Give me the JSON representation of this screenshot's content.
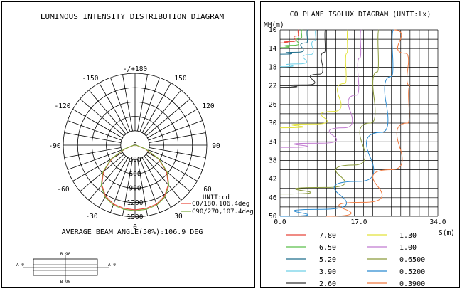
{
  "polar": {
    "title": "LUMINOUS INTENSITY DISTRIBUTION DIAGRAM",
    "angle_labels": [
      "-/+180",
      "-150",
      "150",
      "-120",
      "120",
      "-90",
      "90",
      "-60",
      "60",
      "-30",
      "30",
      "0"
    ],
    "radial_labels": [
      "0",
      "300",
      "600",
      "900",
      "1200",
      "1500"
    ],
    "unit": "UNIT:cd",
    "beam_angle": "AVERAGE BEAM ANGLE(50%):106.9 DEG",
    "legend": [
      {
        "label": "C0/180,106.4deg",
        "color": "#e8463a"
      },
      {
        "label": "C90/270,107.4deg",
        "color": "#7aa83c"
      }
    ]
  },
  "fixture": {
    "labels": {
      "top": "B 90",
      "bottom": "B 90",
      "left": "A 0",
      "right": "A 0"
    }
  },
  "isolux": {
    "title": "C0 PLANE ISOLUX DIAGRAM (UNIT:lx)",
    "ylabel": "MH(m)",
    "xlabel": "S(m)",
    "y_ticks": [
      "10",
      "14",
      "18",
      "22",
      "26",
      "30",
      "34",
      "38",
      "42",
      "46",
      "50"
    ],
    "x_ticks": [
      "0.0",
      "17.0",
      "34.0"
    ],
    "legend": [
      {
        "label": "7.80",
        "color": "#e8463a"
      },
      {
        "label": "1.30",
        "color": "#e2e23a"
      },
      {
        "label": "6.50",
        "color": "#5bbf4a"
      },
      {
        "label": "1.00",
        "color": "#c07ad0"
      },
      {
        "label": "5.20",
        "color": "#1f6e8c"
      },
      {
        "label": "0.6500",
        "color": "#8a9a3a"
      },
      {
        "label": "3.90",
        "color": "#6fd0e8"
      },
      {
        "label": "0.5200",
        "color": "#2a8ad0"
      },
      {
        "label": "2.60",
        "color": "#333333"
      },
      {
        "label": "0.3900",
        "color": "#f07a40"
      }
    ]
  },
  "chart_data": [
    {
      "type": "polar",
      "title": "LUMINOUS INTENSITY DISTRIBUTION DIAGRAM",
      "unit": "cd",
      "rlim": [
        0,
        1500
      ],
      "radial_ticks": [
        0,
        300,
        600,
        900,
        1200,
        1500
      ],
      "series": [
        {
          "name": "C0/180,106.4deg",
          "angles": [
            -90,
            -80,
            -70,
            -60,
            -50,
            -40,
            -30,
            -20,
            -10,
            0,
            10,
            20,
            30,
            40,
            50,
            60,
            70,
            80,
            90
          ],
          "values": [
            0,
            40,
            220,
            560,
            860,
            1080,
            1230,
            1310,
            1340,
            1350,
            1340,
            1310,
            1230,
            1080,
            860,
            560,
            220,
            40,
            0
          ]
        },
        {
          "name": "C90/270,107.4deg",
          "angles": [
            -90,
            -80,
            -70,
            -60,
            -50,
            -40,
            -30,
            -20,
            -10,
            0,
            10,
            20,
            30,
            40,
            50,
            60,
            70,
            80,
            90
          ],
          "values": [
            0,
            50,
            240,
            580,
            880,
            1100,
            1250,
            1330,
            1360,
            1370,
            1360,
            1330,
            1250,
            1100,
            880,
            580,
            240,
            50,
            0
          ]
        }
      ]
    },
    {
      "type": "line",
      "title": "C0 PLANE ISOLUX DIAGRAM (UNIT:lx)",
      "xlabel": "S(m)",
      "ylabel": "MH(m)",
      "xlim": [
        0,
        34
      ],
      "ylim": [
        10,
        50
      ],
      "series": [
        {
          "name": "7.80",
          "x": [
            0,
            2.6,
            3.8,
            4.0
          ],
          "y": [
            12.8,
            12.5,
            11.3,
            10
          ]
        },
        {
          "name": "6.50",
          "x": [
            0,
            3.0,
            4.5,
            4.8
          ],
          "y": [
            13.8,
            13.3,
            11.8,
            10
          ]
        },
        {
          "name": "5.20",
          "x": [
            0,
            3.8,
            5.7,
            6.0
          ],
          "y": [
            15.2,
            14.8,
            12.8,
            10
          ]
        },
        {
          "name": "3.90",
          "x": [
            0,
            4.2,
            6.5,
            7.5,
            7.8
          ],
          "y": [
            17.9,
            17.3,
            15.3,
            12.3,
            10
          ]
        },
        {
          "name": "2.60",
          "x": [
            0,
            5.5,
            8.5,
            9.6,
            9.8
          ],
          "y": [
            22.3,
            21.8,
            19.5,
            14.8,
            10
          ]
        },
        {
          "name": "1.30",
          "x": [
            0,
            7.5,
            11.5,
            14.0,
            14.4,
            14.6
          ],
          "y": [
            31.0,
            30.2,
            27.5,
            21.5,
            15.0,
            10
          ]
        },
        {
          "name": "1.00",
          "x": [
            0,
            9.0,
            13.8,
            16.5,
            17.2,
            17.5
          ],
          "y": [
            35.2,
            34.3,
            31.0,
            24.0,
            16.0,
            10
          ]
        },
        {
          "name": "0.6500",
          "x": [
            0,
            10.0,
            16.0,
            19.5,
            21.0,
            21.3
          ],
          "y": [
            45.2,
            43.8,
            39.0,
            30.0,
            19.0,
            10
          ]
        },
        {
          "name": "0.5200",
          "x": [
            0,
            9.0,
            17.0,
            21.8,
            24.0,
            24.5
          ],
          "y": [
            50.0,
            48.5,
            42.5,
            32.0,
            20.0,
            10
          ]
        },
        {
          "name": "0.3900",
          "x": [
            10.0,
            18.0,
            24.0,
            27.5,
            28.0,
            27.0,
            24.5
          ],
          "y": [
            50.0,
            47.0,
            40.0,
            30.0,
            22.0,
            15.0,
            10
          ]
        }
      ]
    }
  ]
}
